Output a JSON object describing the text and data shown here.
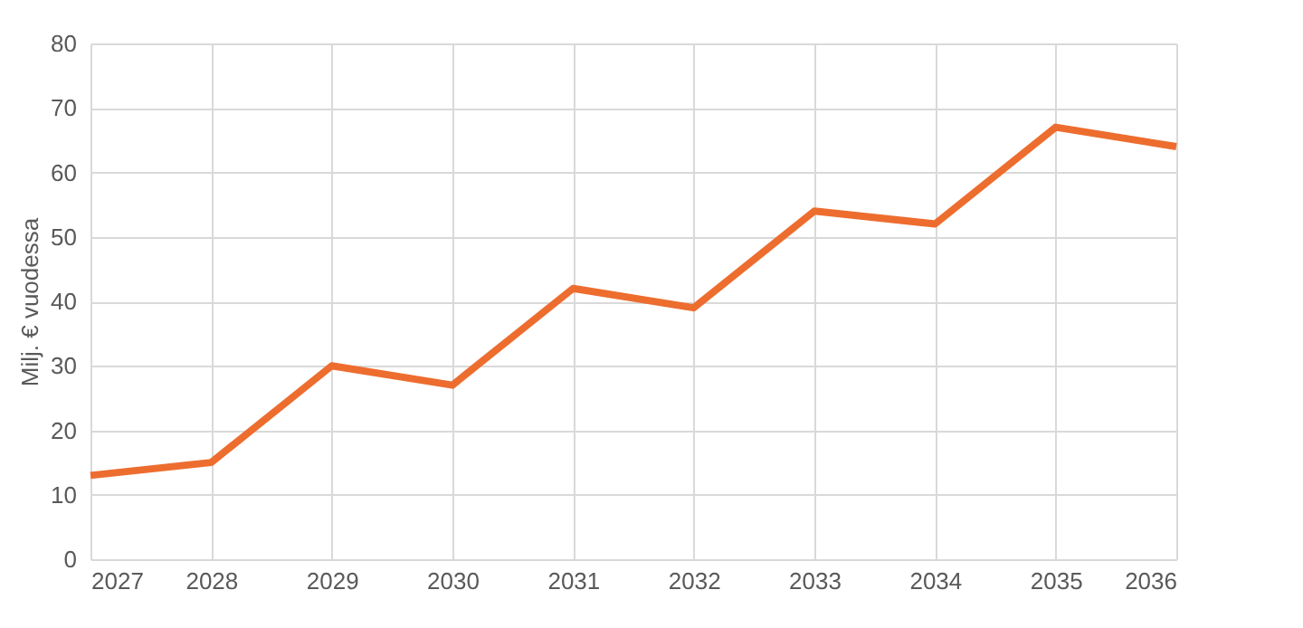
{
  "chart_data": {
    "type": "line",
    "ylabel": "Milj. € vuodessa",
    "x": [
      2027,
      2028,
      2029,
      2030,
      2031,
      2032,
      2033,
      2034,
      2035,
      2036
    ],
    "series": [
      {
        "color": "#ed6d2f",
        "values": [
          13,
          15,
          30,
          27,
          42,
          39,
          54,
          52,
          67,
          64
        ]
      }
    ],
    "xlim": [
      2027,
      2036
    ],
    "xticks": [
      2027,
      2028,
      2029,
      2030,
      2031,
      2032,
      2033,
      2034,
      2035,
      2036
    ],
    "ylim": [
      0,
      80
    ],
    "yticks": [
      0,
      10,
      20,
      30,
      40,
      50,
      60,
      70,
      80
    ],
    "grid": true,
    "marker": "none",
    "line_style": "solid"
  }
}
